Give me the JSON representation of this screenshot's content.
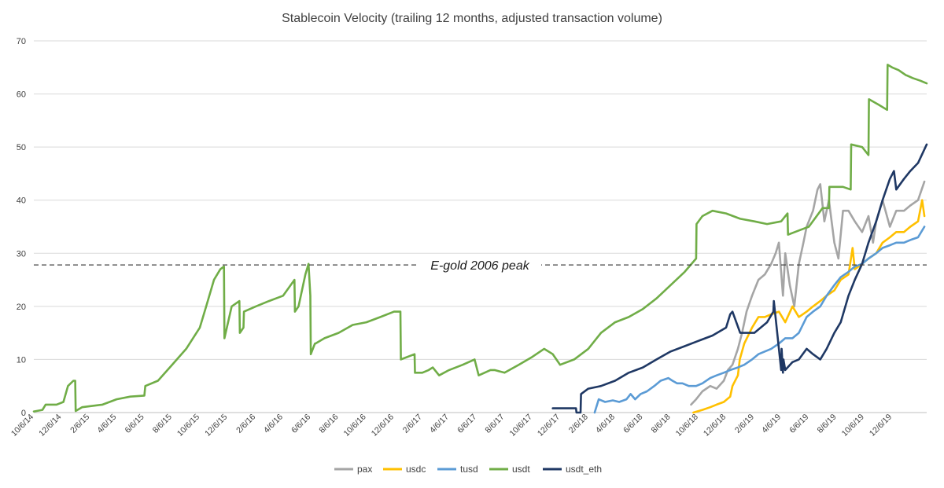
{
  "chart_data": {
    "type": "line",
    "title": "Stablecoin Velocity (trailing 12 months, adjusted transaction volume)",
    "xlabel": "",
    "ylabel": "",
    "ylim": [
      0,
      70
    ],
    "yticks": [
      0,
      10,
      20,
      30,
      40,
      50,
      60,
      70
    ],
    "xlim": [
      "2014-10-06",
      "2020-02-20"
    ],
    "xticks": [
      "10/6/14",
      "12/6/14",
      "2/6/15",
      "4/6/15",
      "6/6/15",
      "8/6/15",
      "10/6/15",
      "12/6/15",
      "2/6/16",
      "4/6/16",
      "6/6/16",
      "8/6/16",
      "10/6/16",
      "12/6/16",
      "2/6/17",
      "4/6/17",
      "6/6/17",
      "8/6/17",
      "10/6/17",
      "12/6/17",
      "2/6/18",
      "4/6/18",
      "6/6/18",
      "8/6/18",
      "10/6/18",
      "12/6/18",
      "2/6/19",
      "4/6/19",
      "6/6/19",
      "8/6/19",
      "10/6/19",
      "12/6/19"
    ],
    "grid": "horizontal",
    "legend_position": "bottom",
    "reference_line": {
      "label": "E-gold 2006 peak",
      "value": 27.8
    },
    "series": [
      {
        "name": "pax",
        "color": "#a5a5a5",
        "x": [
          "2018-09-20",
          "2018-10-01",
          "2018-10-15",
          "2018-11-01",
          "2018-11-15",
          "2018-12-01",
          "2018-12-10",
          "2018-12-20",
          "2019-01-01",
          "2019-01-10",
          "2019-01-20",
          "2019-02-01",
          "2019-02-15",
          "2019-03-01",
          "2019-03-15",
          "2019-03-25",
          "2019-04-01",
          "2019-04-10",
          "2019-04-15",
          "2019-04-25",
          "2019-05-05",
          "2019-05-15",
          "2019-05-25",
          "2019-06-01",
          "2019-06-15",
          "2019-06-25",
          "2019-07-01",
          "2019-07-10",
          "2019-07-20",
          "2019-08-01",
          "2019-08-10",
          "2019-08-20",
          "2019-09-01",
          "2019-09-15",
          "2019-10-01",
          "2019-10-15",
          "2019-10-25",
          "2019-11-01",
          "2019-11-15",
          "2019-12-01",
          "2019-12-15",
          "2020-01-01",
          "2020-01-15",
          "2020-02-01",
          "2020-02-15"
        ],
        "values": [
          1.5,
          2.5,
          4,
          5,
          4.5,
          6,
          8,
          9,
          12,
          15,
          19,
          22,
          25,
          26,
          28,
          30,
          32,
          22,
          30,
          24,
          20,
          28,
          32,
          35,
          38,
          42,
          43,
          36,
          40,
          32,
          29,
          38,
          38,
          36,
          34,
          37,
          32,
          36,
          40,
          35,
          38,
          38,
          39,
          40,
          43.5
        ]
      },
      {
        "name": "usdc",
        "color": "#ffc000",
        "x": [
          "2018-09-25",
          "2018-10-15",
          "2018-11-01",
          "2018-11-15",
          "2018-12-01",
          "2018-12-15",
          "2018-12-20",
          "2019-01-01",
          "2019-01-05",
          "2019-01-15",
          "2019-02-01",
          "2019-02-15",
          "2019-03-01",
          "2019-03-15",
          "2019-04-01",
          "2019-04-15",
          "2019-05-01",
          "2019-05-15",
          "2019-06-01",
          "2019-06-15",
          "2019-07-01",
          "2019-07-15",
          "2019-08-01",
          "2019-08-15",
          "2019-09-01",
          "2019-09-10",
          "2019-09-15",
          "2019-10-01",
          "2019-10-15",
          "2019-11-01",
          "2019-11-15",
          "2019-12-01",
          "2019-12-15",
          "2020-01-01",
          "2020-01-15",
          "2020-02-01",
          "2020-02-10",
          "2020-02-15"
        ],
        "values": [
          0,
          0.5,
          1,
          1.5,
          2,
          3,
          5,
          7,
          10,
          13,
          16,
          18,
          18,
          18.5,
          19,
          17,
          20,
          18,
          19,
          20,
          21,
          22,
          23,
          25,
          26,
          31,
          27,
          28,
          29,
          30,
          32,
          33,
          34,
          34,
          35,
          36,
          40,
          37
        ]
      },
      {
        "name": "tusd",
        "color": "#5b9bd5",
        "x": [
          "2018-02-20",
          "2018-03-01",
          "2018-03-15",
          "2018-04-01",
          "2018-04-15",
          "2018-05-01",
          "2018-05-10",
          "2018-05-20",
          "2018-06-01",
          "2018-06-15",
          "2018-07-01",
          "2018-07-15",
          "2018-08-01",
          "2018-08-10",
          "2018-08-20",
          "2018-09-01",
          "2018-09-15",
          "2018-10-01",
          "2018-10-15",
          "2018-11-01",
          "2018-11-15",
          "2018-12-01",
          "2018-12-15",
          "2019-01-01",
          "2019-01-15",
          "2019-02-01",
          "2019-02-15",
          "2019-03-01",
          "2019-03-15",
          "2019-04-01",
          "2019-04-15",
          "2019-05-01",
          "2019-05-15",
          "2019-06-01",
          "2019-06-15",
          "2019-07-01",
          "2019-07-15",
          "2019-08-01",
          "2019-08-15",
          "2019-09-01",
          "2019-09-15",
          "2019-10-01",
          "2019-10-15",
          "2019-11-01",
          "2019-11-15",
          "2019-12-01",
          "2019-12-15",
          "2020-01-01",
          "2020-01-15",
          "2020-02-01",
          "2020-02-15"
        ],
        "values": [
          0,
          2.5,
          2,
          2.3,
          2,
          2.5,
          3.5,
          2.5,
          3.5,
          4,
          5,
          6,
          6.5,
          6,
          5.5,
          5.5,
          5,
          5,
          5.5,
          6.5,
          7,
          7.5,
          8,
          8.5,
          9,
          10,
          11,
          11.5,
          12,
          13,
          14,
          14,
          15,
          18,
          19,
          20,
          22,
          24,
          25.5,
          26.5,
          27.5,
          28,
          29,
          30,
          31,
          31.5,
          32,
          32,
          32.5,
          33,
          35
        ]
      },
      {
        "name": "usdt",
        "color": "#70ad47",
        "x": [
          "2014-10-06",
          "2014-10-25",
          "2014-11-01",
          "2014-11-25",
          "2014-12-10",
          "2014-12-20",
          "2015-01-01",
          "2015-01-05",
          "2015-01-06",
          "2015-01-20",
          "2015-02-06",
          "2015-03-06",
          "2015-04-06",
          "2015-05-06",
          "2015-06-06",
          "2015-06-08",
          "2015-07-06",
          "2015-08-06",
          "2015-09-06",
          "2015-10-06",
          "2015-10-20",
          "2015-11-06",
          "2015-11-20",
          "2015-11-28",
          "2015-11-29",
          "2015-12-15",
          "2016-01-01",
          "2016-01-02",
          "2016-01-10",
          "2016-01-11",
          "2016-02-06",
          "2016-03-06",
          "2016-04-06",
          "2016-05-01",
          "2016-05-02",
          "2016-05-10",
          "2016-05-20",
          "2016-05-25",
          "2016-06-01",
          "2016-06-05",
          "2016-06-06",
          "2016-06-15",
          "2016-06-16",
          "2016-07-06",
          "2016-08-06",
          "2016-09-06",
          "2016-10-06",
          "2016-11-06",
          "2016-12-06",
          "2016-12-20",
          "2016-12-21",
          "2017-01-20",
          "2017-01-21",
          "2017-02-06",
          "2017-02-20",
          "2017-03-01",
          "2017-03-15",
          "2017-04-06",
          "2017-05-06",
          "2017-06-01",
          "2017-06-10",
          "2017-07-06",
          "2017-07-15",
          "2017-08-06",
          "2017-09-06",
          "2017-10-06",
          "2017-11-01",
          "2017-11-20",
          "2017-12-06",
          "2018-01-06",
          "2018-02-06",
          "2018-03-06",
          "2018-04-06",
          "2018-05-06",
          "2018-06-06",
          "2018-07-06",
          "2018-08-06",
          "2018-09-06",
          "2018-10-01",
          "2018-10-02",
          "2018-10-15",
          "2018-11-06",
          "2018-12-06",
          "2019-01-06",
          "2019-02-06",
          "2019-03-06",
          "2019-04-06",
          "2019-04-20",
          "2019-04-21",
          "2019-05-06",
          "2019-06-06",
          "2019-07-06",
          "2019-07-20",
          "2019-07-21",
          "2019-08-06",
          "2019-08-20",
          "2019-09-06",
          "2019-09-07",
          "2019-10-01",
          "2019-10-15",
          "2019-10-16",
          "2019-11-06",
          "2019-11-25",
          "2019-11-26",
          "2019-12-06",
          "2019-12-20",
          "2020-01-06",
          "2020-01-07",
          "2020-01-20",
          "2020-02-06",
          "2020-02-20"
        ],
        "values": [
          0.2,
          0.5,
          1.5,
          1.5,
          2,
          5,
          6,
          6,
          0.3,
          1,
          1.2,
          1.5,
          2.5,
          3,
          3.2,
          5,
          6,
          9,
          12,
          16,
          20,
          25,
          27,
          27.5,
          14,
          20,
          21,
          15,
          16,
          19,
          20,
          21,
          22,
          25,
          19,
          20,
          24,
          26,
          28,
          22,
          11,
          13,
          13,
          14,
          15,
          16.5,
          17,
          18,
          19,
          19,
          10,
          11,
          7.5,
          7.5,
          8,
          8.5,
          7,
          8,
          9,
          10,
          7,
          8,
          8,
          7.5,
          9,
          10.5,
          12,
          11,
          9,
          10,
          12,
          15,
          17,
          18,
          19.5,
          21.5,
          24,
          26.5,
          29,
          35.5,
          37,
          38,
          37.5,
          36.5,
          36,
          35.5,
          36,
          37.5,
          33.5,
          34,
          35,
          38.5,
          38.5,
          42.5,
          42.5,
          42.5,
          42,
          50.5,
          50,
          48.5,
          59,
          58,
          57,
          65.5,
          65,
          64.5,
          63.5,
          63.5,
          63,
          62.5,
          62
        ]
      },
      {
        "name": "usdt_eth",
        "color": "#1f3864",
        "x": [
          "2017-11-20",
          "2018-01-10",
          "2018-01-11",
          "2018-01-20",
          "2018-01-21",
          "2018-02-06",
          "2018-03-06",
          "2018-04-06",
          "2018-05-06",
          "2018-06-06",
          "2018-07-06",
          "2018-08-06",
          "2018-09-06",
          "2018-10-06",
          "2018-11-06",
          "2018-12-06",
          "2018-12-15",
          "2018-12-20",
          "2019-01-06",
          "2019-02-06",
          "2019-03-06",
          "2019-03-20",
          "2019-03-21",
          "2019-04-06",
          "2019-04-07",
          "2019-04-10",
          "2019-04-11",
          "2019-04-15",
          "2019-05-01",
          "2019-05-15",
          "2019-06-01",
          "2019-06-15",
          "2019-07-01",
          "2019-07-15",
          "2019-08-01",
          "2019-08-15",
          "2019-09-01",
          "2019-09-15",
          "2019-10-01",
          "2019-10-15",
          "2019-11-01",
          "2019-11-15",
          "2019-12-01",
          "2019-12-10",
          "2019-12-15",
          "2020-01-01",
          "2020-01-15",
          "2020-02-01",
          "2020-02-20"
        ],
        "values": [
          0.8,
          0.8,
          0,
          0,
          3.5,
          4.5,
          5,
          6,
          7.5,
          8.5,
          10,
          11.5,
          12.5,
          13.5,
          14.5,
          16,
          18.5,
          19,
          15,
          15,
          17,
          19,
          21,
          8,
          12,
          7.5,
          10,
          8,
          9.5,
          10,
          12,
          11,
          10,
          12,
          15,
          17,
          22,
          25,
          28,
          32,
          36,
          40,
          44,
          45.5,
          42,
          44,
          45.5,
          47,
          50.5
        ]
      }
    ]
  }
}
